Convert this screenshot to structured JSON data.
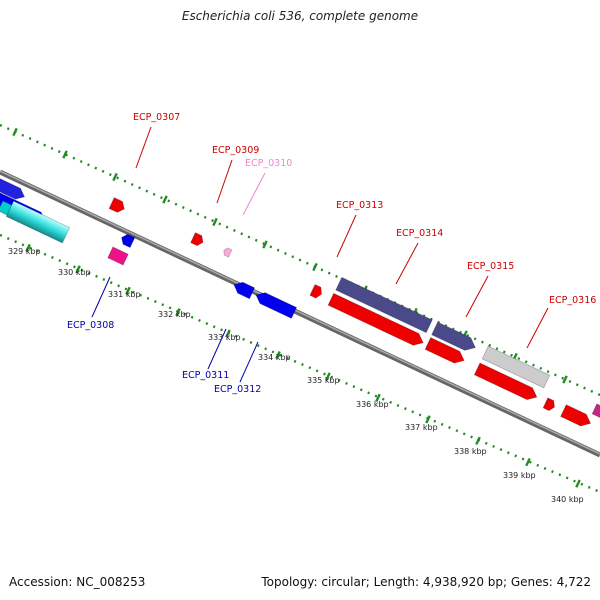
{
  "title": "Escherichia coli 536, complete genome",
  "footer": {
    "accession": "Accession: NC_008253",
    "summary": "Topology: circular; Length: 4,938,920 bp; Genes: 4,722"
  },
  "colors": {
    "backbone": "#888888",
    "grid": "#228B22",
    "forward_cds": "#ff0000",
    "reverse_cds": "#0000ee",
    "forward_label": "#cc0000",
    "reverse_label": "#0000aa",
    "pseudo_label": "#ee88cc"
  },
  "kbp_ticks": [
    "329 kbp",
    "330 kbp",
    "331 kbp",
    "332 kbp",
    "333 kbp",
    "334 kbp",
    "335 kbp",
    "336 kbp",
    "337 kbp",
    "338 kbp",
    "339 kbp",
    "340 kbp"
  ],
  "gene_labels": {
    "top": [
      "ECP_0307",
      "ECP_0309",
      "ECP_0310",
      "ECP_0313",
      "ECP_0314",
      "ECP_0315",
      "ECP_0316"
    ],
    "bottom": [
      "ECP_0308",
      "ECP_0311",
      "ECP_0312"
    ]
  }
}
